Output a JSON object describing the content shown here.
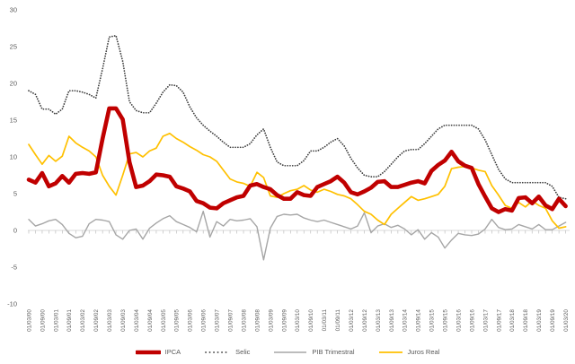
{
  "chart_data": {
    "type": "line",
    "title": "",
    "xlabel": "",
    "ylabel": "",
    "ylim": [
      -10,
      30
    ],
    "y_ticks": [
      30,
      25,
      20,
      15,
      10,
      5,
      0,
      -5,
      -10
    ],
    "grid": "zero-line-only",
    "legend_position": "bottom-center",
    "x_labels": [
      "01/03/00",
      "01/09/00",
      "01/03/01",
      "01/09/01",
      "01/03/02",
      "01/09/02",
      "01/03/03",
      "01/09/03",
      "01/03/04",
      "01/09/04",
      "01/03/05",
      "01/09/05",
      "01/03/06",
      "01/09/06",
      "01/03/07",
      "01/09/07",
      "01/03/08",
      "01/09/08",
      "01/03/09",
      "01/09/09",
      "01/03/10",
      "01/09/10",
      "01/03/11",
      "01/09/11",
      "01/03/12",
      "01/09/12",
      "01/03/13",
      "01/09/13",
      "01/03/14",
      "01/09/14",
      "01/03/15",
      "01/09/15",
      "01/03/16",
      "01/09/16",
      "01/03/17",
      "01/09/17",
      "01/03/18",
      "01/09/18",
      "01/03/19",
      "01/09/19",
      "01/03/20"
    ],
    "points_per_label_interval": 2,
    "series": [
      {
        "name": "IPCA",
        "color": "#c00000",
        "style": "solid-thick",
        "values": [
          6.9,
          6.5,
          7.8,
          6.0,
          6.4,
          7.4,
          6.5,
          7.7,
          7.8,
          7.7,
          7.9,
          12.5,
          16.6,
          16.6,
          15.1,
          9.3,
          5.9,
          6.1,
          6.7,
          7.6,
          7.5,
          7.3,
          6.0,
          5.7,
          5.3,
          4.0,
          3.7,
          3.1,
          3.0,
          3.7,
          4.1,
          4.5,
          4.7,
          6.1,
          6.3,
          5.9,
          5.6,
          4.8,
          4.3,
          4.3,
          5.2,
          4.8,
          4.7,
          5.9,
          6.3,
          6.7,
          7.3,
          6.5,
          5.2,
          4.9,
          5.3,
          5.8,
          6.6,
          6.7,
          5.9,
          5.9,
          6.2,
          6.5,
          6.7,
          6.4,
          8.1,
          8.9,
          9.5,
          10.7,
          9.4,
          8.8,
          8.5,
          6.3,
          4.6,
          3.0,
          2.5,
          2.9,
          2.7,
          4.4,
          4.5,
          3.7,
          4.6,
          3.4,
          2.9,
          4.3,
          3.3
        ]
      },
      {
        "name": "Selic",
        "color": "#3d3d3d",
        "style": "dotted",
        "values": [
          19.0,
          18.5,
          16.5,
          16.5,
          15.8,
          16.5,
          19.0,
          19.0,
          18.8,
          18.5,
          18.0,
          22.0,
          26.3,
          26.5,
          23.0,
          17.5,
          16.3,
          16.0,
          16.0,
          17.3,
          18.8,
          19.8,
          19.7,
          18.8,
          16.8,
          15.3,
          14.3,
          13.5,
          12.8,
          12.0,
          11.3,
          11.3,
          11.3,
          11.8,
          13.0,
          13.8,
          11.3,
          9.3,
          8.8,
          8.8,
          8.8,
          9.5,
          10.8,
          10.8,
          11.3,
          12.0,
          12.5,
          11.5,
          9.8,
          8.5,
          7.5,
          7.3,
          7.3,
          8.0,
          9.0,
          10.0,
          10.8,
          11.0,
          11.0,
          11.8,
          12.8,
          13.8,
          14.3,
          14.3,
          14.3,
          14.3,
          14.3,
          13.8,
          12.3,
          10.3,
          8.3,
          7.0,
          6.5,
          6.5,
          6.5,
          6.5,
          6.5,
          6.5,
          6.0,
          4.5,
          4.3
        ]
      },
      {
        "name": "PIB Trimestral",
        "color": "#a6a6a6",
        "style": "solid-thin",
        "values": [
          1.5,
          0.6,
          0.9,
          1.3,
          1.5,
          0.8,
          -0.4,
          -1.0,
          -0.8,
          0.9,
          1.5,
          1.4,
          1.2,
          -0.6,
          -1.2,
          0.0,
          0.2,
          -1.2,
          0.3,
          1.0,
          1.6,
          2.0,
          1.2,
          0.8,
          0.4,
          -0.2,
          2.6,
          -0.9,
          1.2,
          0.6,
          1.5,
          1.3,
          1.4,
          1.6,
          0.5,
          -4.0,
          0.3,
          1.9,
          2.2,
          2.1,
          2.2,
          1.7,
          1.4,
          1.2,
          1.4,
          1.1,
          0.8,
          0.5,
          0.2,
          0.6,
          2.4,
          -0.3,
          0.6,
          0.9,
          0.4,
          0.7,
          0.2,
          -0.6,
          0.1,
          -1.2,
          -0.3,
          -0.9,
          -2.4,
          -1.3,
          -0.4,
          -0.6,
          -0.7,
          -0.5,
          0.2,
          1.5,
          0.4,
          0.1,
          0.2,
          0.8,
          0.5,
          0.2,
          0.8,
          0.1,
          0.1,
          0.6,
          1.1
        ]
      },
      {
        "name": "Juros Real",
        "color": "#ffc000",
        "style": "solid",
        "values": [
          11.7,
          10.3,
          9.0,
          10.2,
          9.4,
          10.1,
          12.8,
          11.9,
          11.3,
          10.8,
          10.0,
          7.5,
          6.0,
          4.8,
          7.5,
          10.4,
          10.6,
          10.0,
          10.8,
          11.2,
          12.8,
          13.2,
          12.5,
          12.0,
          11.4,
          10.9,
          10.3,
          10.0,
          9.4,
          8.2,
          7.0,
          6.6,
          6.4,
          6.0,
          7.9,
          7.2,
          4.7,
          4.5,
          5.0,
          5.4,
          5.6,
          6.1,
          5.5,
          5.2,
          5.6,
          5.3,
          4.9,
          4.7,
          4.3,
          3.5,
          2.6,
          2.2,
          1.4,
          0.8,
          2.2,
          3.0,
          3.8,
          4.6,
          4.1,
          4.3,
          4.6,
          4.9,
          6.0,
          8.4,
          8.6,
          8.7,
          8.5,
          8.2,
          8.0,
          6.1,
          4.8,
          3.4,
          3.0,
          3.8,
          3.2,
          4.0,
          3.4,
          3.0,
          1.3,
          0.3,
          0.5
        ]
      }
    ],
    "colors": {
      "background": "#ffffff",
      "axis_line": "#d9d9d9",
      "tick_mark": "#bfbfbf",
      "tick_label": "#595959"
    }
  },
  "legend": {
    "items": [
      {
        "label": "IPCA"
      },
      {
        "label": "Selic"
      },
      {
        "label": "PIB Trimestral"
      },
      {
        "label": "Juros Real"
      }
    ]
  }
}
